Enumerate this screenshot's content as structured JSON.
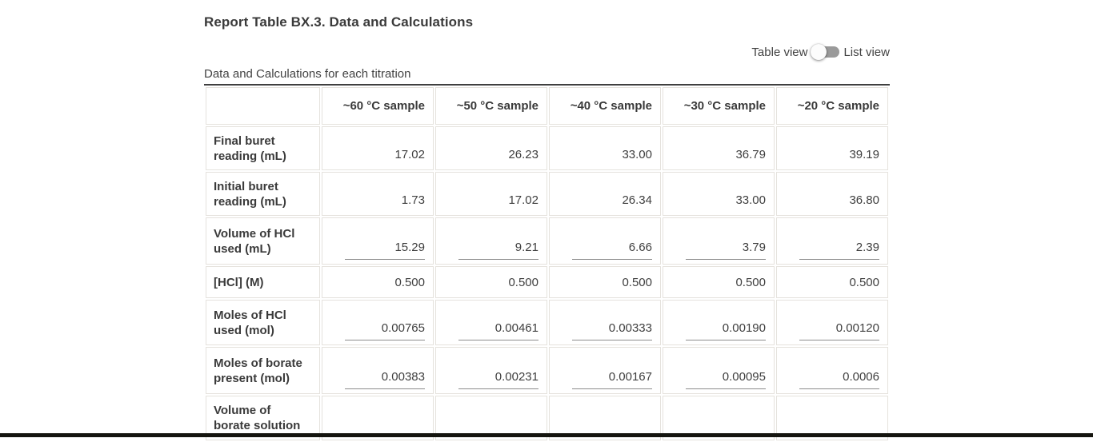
{
  "page": {
    "title": "Report Table BX.3. Data and Calculations",
    "caption": "Data and Calculations for each titration",
    "view_toggle": {
      "left_label": "Table view",
      "right_label": "List view",
      "selected": "Table view"
    },
    "colors": {
      "rule": "#3f3f3f",
      "cell_border": "#e5e2dd",
      "input_underline": "#8c8c8c",
      "toggle_track": "#9a9a9a",
      "bottom_bar": "#15150f"
    }
  },
  "table": {
    "columns": [
      "~60 °C sample",
      "~50 °C sample",
      "~40 °C sample",
      "~30 °C sample",
      "~20 °C sample"
    ],
    "rows": [
      {
        "label": "Final buret reading (mL)",
        "editable": false,
        "values": [
          "17.02",
          "26.23",
          "33.00",
          "36.79",
          "39.19"
        ]
      },
      {
        "label": "Initial buret reading (mL)",
        "editable": false,
        "values": [
          "1.73",
          "17.02",
          "26.34",
          "33.00",
          "36.80"
        ]
      },
      {
        "label": "Volume of HCl used (mL)",
        "editable": true,
        "values": [
          "15.29",
          "9.21",
          "6.66",
          "3.79",
          "2.39"
        ]
      },
      {
        "label": "[HCl] (M)",
        "editable": false,
        "values": [
          "0.500",
          "0.500",
          "0.500",
          "0.500",
          "0.500"
        ]
      },
      {
        "label": "Moles of HCl used (mol)",
        "editable": true,
        "values": [
          "0.00765",
          "0.00461",
          "0.00333",
          "0.00190",
          "0.00120"
        ]
      },
      {
        "label": "Moles of borate present (mol)",
        "editable": true,
        "values": [
          "0.00383",
          "0.00231",
          "0.00167",
          "0.00095",
          "0.0006"
        ]
      },
      {
        "label": "Volume of borate solution",
        "editable": false,
        "values": [
          "",
          "",
          "",
          "",
          ""
        ]
      }
    ]
  }
}
